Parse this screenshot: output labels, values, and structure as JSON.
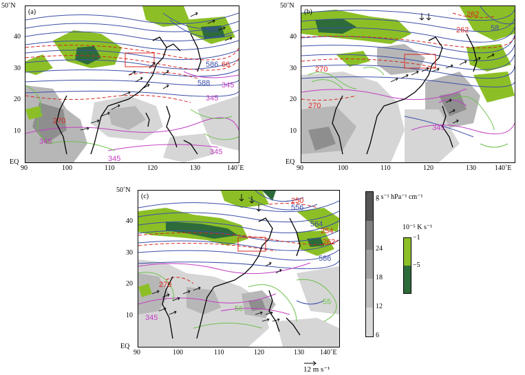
{
  "panels": [
    {
      "id": "a",
      "label": "(a)",
      "contour_labels": [
        {
          "text": "588"
        },
        {
          "text": "588"
        },
        {
          "text": "586"
        },
        {
          "text": "345"
        },
        {
          "text": "345"
        },
        {
          "text": "345"
        },
        {
          "text": "345"
        },
        {
          "text": "66"
        },
        {
          "text": "270"
        },
        {
          "text": "345"
        }
      ]
    },
    {
      "id": "b",
      "label": "(b)",
      "contour_labels": [
        {
          "text": "262"
        },
        {
          "text": "262"
        },
        {
          "text": "58"
        },
        {
          "text": "270"
        },
        {
          "text": "345"
        },
        {
          "text": "270"
        }
      ]
    },
    {
      "id": "c",
      "label": "(c)",
      "contour_labels": [
        {
          "text": "250"
        },
        {
          "text": "556"
        },
        {
          "text": "564"
        },
        {
          "text": "254"
        },
        {
          "text": "262"
        },
        {
          "text": "586"
        },
        {
          "text": "270"
        },
        {
          "text": "345"
        },
        {
          "text": "56"
        },
        {
          "text": "55"
        }
      ]
    }
  ],
  "axes": {
    "lon_ticks": [
      "90",
      "100",
      "110",
      "120",
      "130",
      "140˚E"
    ],
    "lat_ticks": [
      "50˚N",
      "40",
      "30",
      "20",
      "10",
      "EQ"
    ]
  },
  "colorbar_gray": {
    "units": "g s⁻¹ hPa⁻¹ cm⁻¹",
    "ticks": [
      "24",
      "18",
      "12",
      "6"
    ],
    "colors": [
      "#d9d9d9",
      "#bfbfbf",
      "#a0a0a0",
      "#808080",
      "#555555"
    ]
  },
  "colorbar_green": {
    "units": "10⁻⁵ K s⁻¹",
    "ticks": [
      "−1",
      "−5"
    ],
    "colors": [
      "#8cbf26",
      "#2d6b3a"
    ]
  },
  "vector_ref": {
    "label": "12  m s⁻¹"
  },
  "colors": {
    "contour_blue": "#3a4ea8",
    "contour_red": "#d8241f",
    "contour_magenta": "#c23cc2",
    "contour_green": "#6cc04a",
    "gray_light": "#d6d6d6",
    "gray_mid": "#b7b7b7",
    "gray_dark": "#8e8e8e",
    "green_light": "#8cbf26",
    "green_dark": "#2d6b3a"
  }
}
